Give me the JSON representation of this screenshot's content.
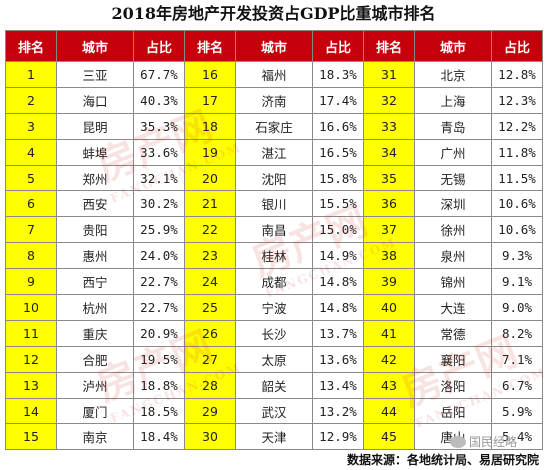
{
  "title": "2018年房地产开发投资占GDP比重城市排名",
  "headers": [
    "排名",
    "城市",
    "占比",
    "排名",
    "城市",
    "占比",
    "排名",
    "城市",
    "占比"
  ],
  "rows": [
    [
      [
        "1",
        "三亚",
        "67.7%"
      ],
      [
        "16",
        "福州",
        "18.3%"
      ],
      [
        "31",
        "北京",
        "12.8%"
      ]
    ],
    [
      [
        "2",
        "海口",
        "40.3%"
      ],
      [
        "17",
        "济南",
        "17.4%"
      ],
      [
        "32",
        "上海",
        "12.3%"
      ]
    ],
    [
      [
        "3",
        "昆明",
        "35.3%"
      ],
      [
        "18",
        "石家庄",
        "16.6%"
      ],
      [
        "33",
        "青岛",
        "12.2%"
      ]
    ],
    [
      [
        "4",
        "蚌埠",
        "33.6%"
      ],
      [
        "19",
        "湛江",
        "16.5%"
      ],
      [
        "34",
        "广州",
        "11.8%"
      ]
    ],
    [
      [
        "5",
        "郑州",
        "32.1%"
      ],
      [
        "20",
        "沈阳",
        "15.8%"
      ],
      [
        "35",
        "无锡",
        "11.5%"
      ]
    ],
    [
      [
        "6",
        "西安",
        "30.2%"
      ],
      [
        "21",
        "银川",
        "15.5%"
      ],
      [
        "36",
        "深圳",
        "10.6%"
      ]
    ],
    [
      [
        "7",
        "贵阳",
        "25.9%"
      ],
      [
        "22",
        "南昌",
        "15.0%"
      ],
      [
        "37",
        "徐州",
        "10.6%"
      ]
    ],
    [
      [
        "8",
        "惠州",
        "24.0%"
      ],
      [
        "23",
        "桂林",
        "14.9%"
      ],
      [
        "38",
        "泉州",
        "9.3%"
      ]
    ],
    [
      [
        "9",
        "西宁",
        "22.7%"
      ],
      [
        "24",
        "成都",
        "14.8%"
      ],
      [
        "39",
        "锦州",
        "9.1%"
      ]
    ],
    [
      [
        "10",
        "杭州",
        "22.7%"
      ],
      [
        "25",
        "宁波",
        "14.8%"
      ],
      [
        "40",
        "大连",
        "9.0%"
      ]
    ],
    [
      [
        "11",
        "重庆",
        "20.9%"
      ],
      [
        "26",
        "长沙",
        "13.7%"
      ],
      [
        "41",
        "常德",
        "8.2%"
      ]
    ],
    [
      [
        "12",
        "合肥",
        "19.5%"
      ],
      [
        "27",
        "太原",
        "13.6%"
      ],
      [
        "42",
        "襄阳",
        "7.1%"
      ]
    ],
    [
      [
        "13",
        "泸州",
        "18.8%"
      ],
      [
        "28",
        "韶关",
        "13.4%"
      ],
      [
        "43",
        "洛阳",
        "6.7%"
      ]
    ],
    [
      [
        "14",
        "厦门",
        "18.5%"
      ],
      [
        "29",
        "武汉",
        "13.2%"
      ],
      [
        "44",
        "岳阳",
        "5.9%"
      ]
    ],
    [
      [
        "15",
        "南京",
        "18.4%"
      ],
      [
        "30",
        "天津",
        "12.9%"
      ],
      [
        "45",
        "唐山",
        "5.4%"
      ]
    ]
  ],
  "watermark": {
    "text": "房产网",
    "sub": "FANGCHAN.COM"
  },
  "badge": {
    "text": "国民经略",
    "icon": "wechat-icon"
  },
  "footer": "数据来源：各地统计局、易居研究院",
  "colors": {
    "header_bg": "#c5000b",
    "rank_bg": "#ffff00",
    "header_text": "#ffffff"
  }
}
